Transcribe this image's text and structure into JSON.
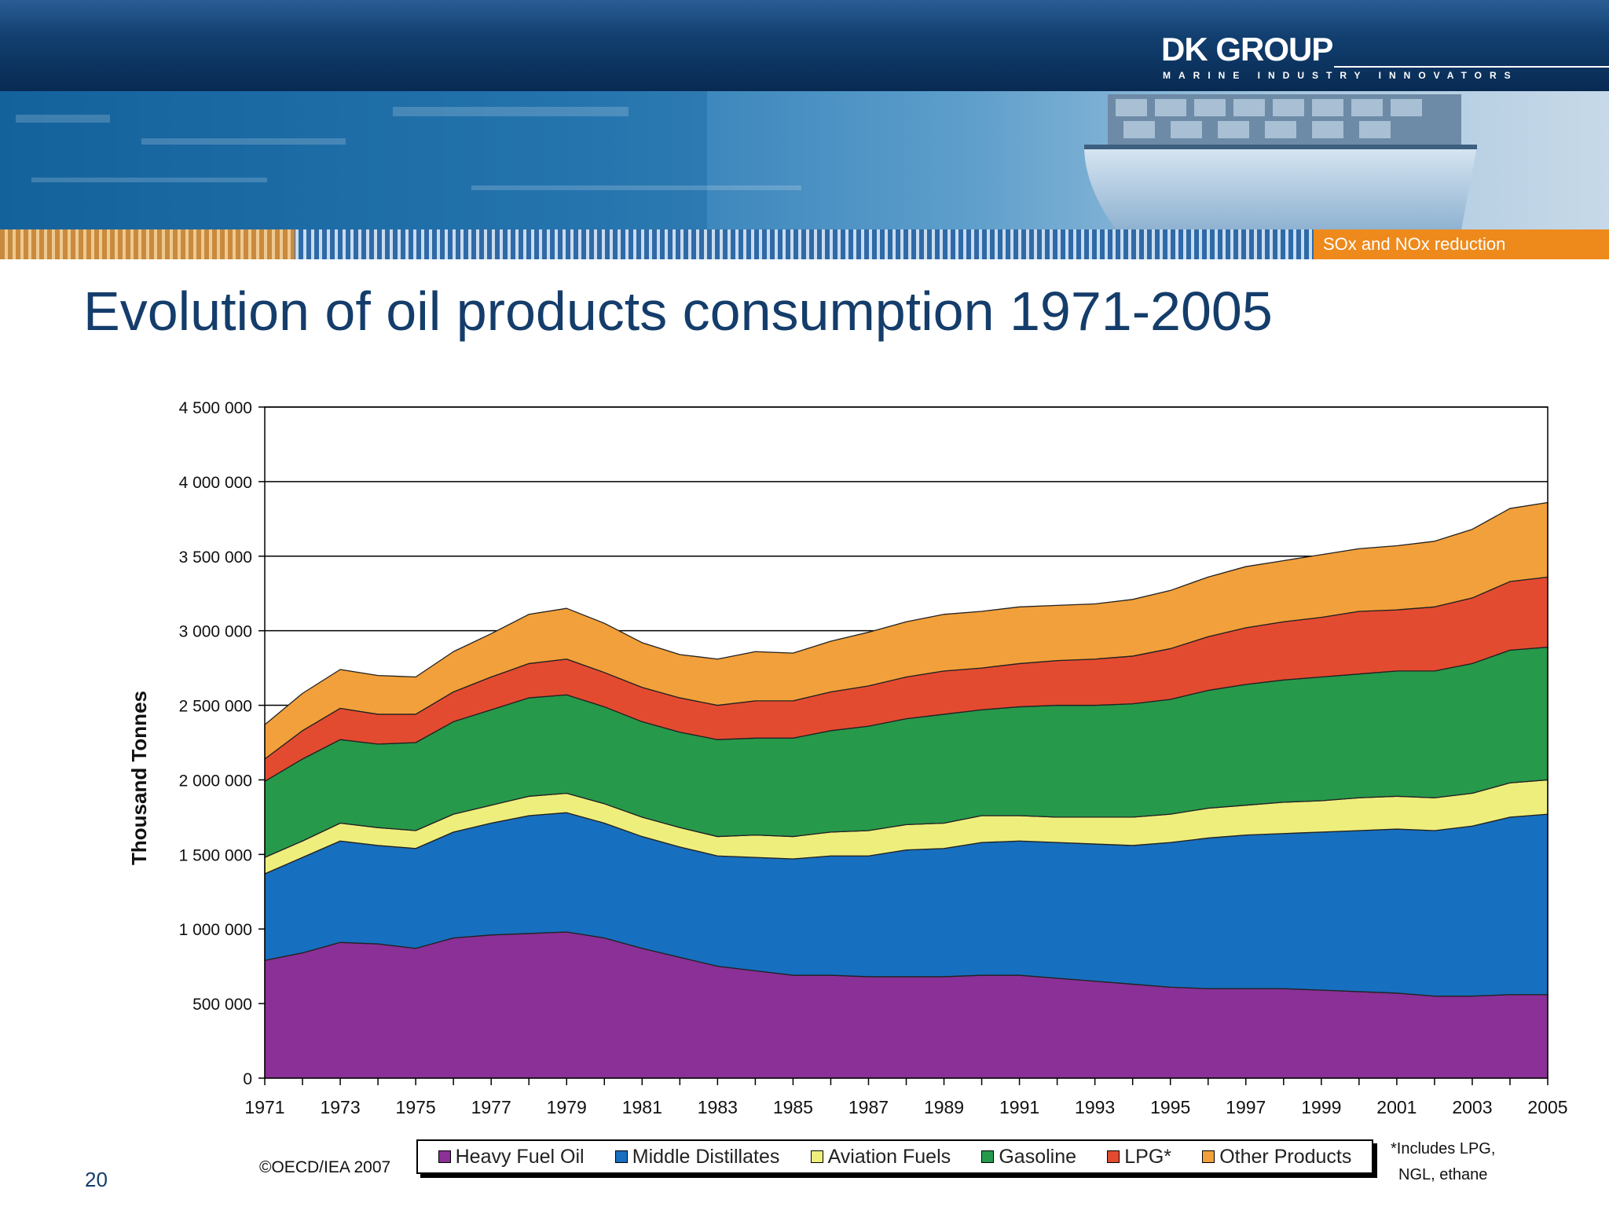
{
  "header": {
    "brand": "DK GROUP",
    "tagline": "MARINE INDUSTRY INNOVATORS",
    "section": "SOx and NOx reduction"
  },
  "slide": {
    "title": "Evolution of oil products consumption 1971-2005",
    "page_number": "20",
    "source": "©OECD/IEA 2007",
    "footnote_line1": "*Includes LPG,",
    "footnote_line2": "NGL, ethane"
  },
  "chart_data": {
    "type": "area",
    "stacked": true,
    "title": "",
    "xlabel": "",
    "ylabel": "Thousand Tonnes",
    "xlim": [
      1971,
      2005
    ],
    "ylim": [
      0,
      4500000
    ],
    "y_ticks": [
      0,
      500000,
      1000000,
      1500000,
      2000000,
      2500000,
      3000000,
      3500000,
      4000000,
      4500000
    ],
    "y_tick_labels": [
      "0",
      "500 000",
      "1 000 000",
      "1 500 000",
      "2 000 000",
      "2 500 000",
      "3 000 000",
      "3 500 000",
      "4 000 000",
      "4 500 000"
    ],
    "x_tick_labels": [
      "1971",
      "1973",
      "1975",
      "1977",
      "1979",
      "1981",
      "1983",
      "1985",
      "1987",
      "1989",
      "1991",
      "1993",
      "1995",
      "1997",
      "1999",
      "2001",
      "2003",
      "2005"
    ],
    "grid": "horizontal",
    "legend_position": "bottom",
    "x": [
      1971,
      1972,
      1973,
      1974,
      1975,
      1976,
      1977,
      1978,
      1979,
      1980,
      1981,
      1982,
      1983,
      1984,
      1985,
      1986,
      1987,
      1988,
      1989,
      1990,
      1991,
      1992,
      1993,
      1994,
      1995,
      1996,
      1997,
      1998,
      1999,
      2000,
      2001,
      2002,
      2003,
      2004,
      2005
    ],
    "series": [
      {
        "name": "Heavy Fuel Oil",
        "color": "#8a3096",
        "values": [
          790000,
          840000,
          910000,
          900000,
          870000,
          940000,
          960000,
          970000,
          980000,
          940000,
          870000,
          810000,
          750000,
          720000,
          690000,
          690000,
          680000,
          680000,
          680000,
          690000,
          690000,
          670000,
          650000,
          630000,
          610000,
          600000,
          600000,
          600000,
          590000,
          580000,
          570000,
          550000,
          550000,
          560000,
          560000
        ]
      },
      {
        "name": "Middle Distillates",
        "color": "#176fbf",
        "values": [
          580000,
          640000,
          680000,
          660000,
          670000,
          710000,
          750000,
          790000,
          800000,
          770000,
          750000,
          740000,
          740000,
          760000,
          780000,
          800000,
          810000,
          850000,
          860000,
          890000,
          900000,
          910000,
          920000,
          930000,
          970000,
          1010000,
          1030000,
          1040000,
          1060000,
          1080000,
          1100000,
          1110000,
          1140000,
          1190000,
          1210000
        ]
      },
      {
        "name": "Aviation Fuels",
        "color": "#eeee7d",
        "values": [
          110000,
          110000,
          120000,
          120000,
          120000,
          120000,
          120000,
          130000,
          130000,
          130000,
          130000,
          130000,
          130000,
          150000,
          150000,
          160000,
          170000,
          170000,
          170000,
          180000,
          170000,
          170000,
          180000,
          190000,
          190000,
          200000,
          200000,
          210000,
          210000,
          220000,
          220000,
          220000,
          220000,
          230000,
          230000
        ]
      },
      {
        "name": "Gasoline",
        "color": "#27994b",
        "values": [
          510000,
          550000,
          560000,
          560000,
          590000,
          620000,
          640000,
          660000,
          660000,
          650000,
          640000,
          640000,
          650000,
          650000,
          660000,
          680000,
          700000,
          710000,
          730000,
          710000,
          730000,
          750000,
          750000,
          760000,
          770000,
          790000,
          810000,
          820000,
          830000,
          830000,
          840000,
          850000,
          870000,
          890000,
          890000
        ]
      },
      {
        "name": "LPG*",
        "color": "#e34b30",
        "values": [
          150000,
          190000,
          210000,
          200000,
          190000,
          200000,
          220000,
          230000,
          240000,
          230000,
          230000,
          230000,
          230000,
          250000,
          250000,
          260000,
          270000,
          280000,
          290000,
          280000,
          290000,
          300000,
          310000,
          320000,
          340000,
          360000,
          380000,
          390000,
          400000,
          420000,
          410000,
          430000,
          440000,
          460000,
          470000
        ]
      },
      {
        "name": "Other Products",
        "color": "#f2a03b",
        "values": [
          230000,
          250000,
          260000,
          260000,
          250000,
          270000,
          290000,
          330000,
          340000,
          330000,
          300000,
          290000,
          310000,
          330000,
          320000,
          340000,
          360000,
          370000,
          380000,
          380000,
          380000,
          370000,
          370000,
          380000,
          390000,
          400000,
          410000,
          410000,
          420000,
          420000,
          430000,
          440000,
          460000,
          490000,
          500000
        ]
      }
    ]
  }
}
